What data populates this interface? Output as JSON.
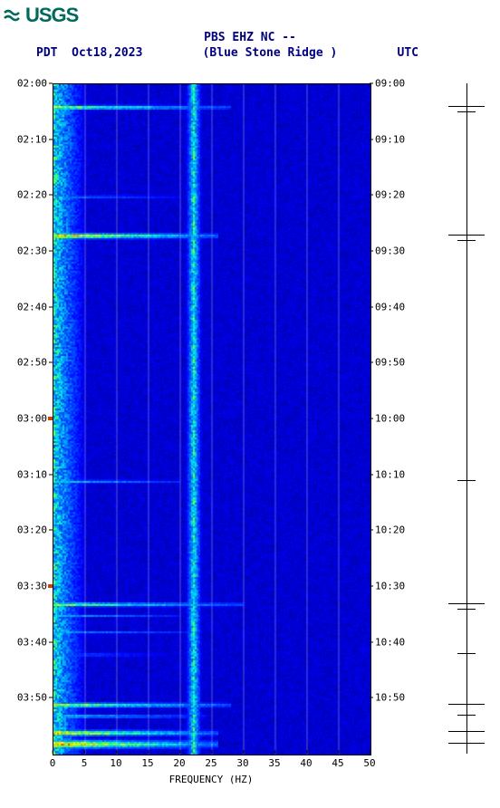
{
  "logo": {
    "text": "USGS",
    "color": "#00695c"
  },
  "header": {
    "title": "PBS EHZ NC --",
    "tz_left": "PDT",
    "date": "Oct18,2023",
    "station": "(Blue Stone Ridge )",
    "tz_right": "UTC"
  },
  "spectrogram": {
    "type": "spectrogram",
    "xlabel": "FREQUENCY (HZ)",
    "xlim": [
      0,
      50
    ],
    "xticks": [
      0,
      5,
      10,
      15,
      20,
      25,
      30,
      35,
      40,
      45,
      50
    ],
    "grid_x": [
      5,
      10,
      15,
      20,
      25,
      30,
      35,
      40,
      45
    ],
    "ylim_left_min": 120,
    "left_ticks": [
      {
        "v": 0,
        "label": "02:00"
      },
      {
        "v": 10,
        "label": "02:10"
      },
      {
        "v": 20,
        "label": "02:20"
      },
      {
        "v": 30,
        "label": "02:30"
      },
      {
        "v": 40,
        "label": "02:40"
      },
      {
        "v": 50,
        "label": "02:50"
      },
      {
        "v": 60,
        "label": "03:00"
      },
      {
        "v": 70,
        "label": "03:10"
      },
      {
        "v": 80,
        "label": "03:20"
      },
      {
        "v": 90,
        "label": "03:30"
      },
      {
        "v": 100,
        "label": "03:40"
      },
      {
        "v": 110,
        "label": "03:50"
      }
    ],
    "right_ticks": [
      {
        "v": 0,
        "label": "09:00"
      },
      {
        "v": 10,
        "label": "09:10"
      },
      {
        "v": 20,
        "label": "09:20"
      },
      {
        "v": 30,
        "label": "09:30"
      },
      {
        "v": 40,
        "label": "09:40"
      },
      {
        "v": 50,
        "label": "09:50"
      },
      {
        "v": 60,
        "label": "10:00"
      },
      {
        "v": 70,
        "label": "10:10"
      },
      {
        "v": 80,
        "label": "10:20"
      },
      {
        "v": 90,
        "label": "10:30"
      },
      {
        "v": 100,
        "label": "10:40"
      },
      {
        "v": 110,
        "label": "10:50"
      }
    ],
    "colorscale": {
      "stops": [
        {
          "v": 0.0,
          "c": "#00008b"
        },
        {
          "v": 0.15,
          "c": "#0000ff"
        },
        {
          "v": 0.35,
          "c": "#0060ff"
        },
        {
          "v": 0.5,
          "c": "#00c0ff"
        },
        {
          "v": 0.6,
          "c": "#00ffc0"
        },
        {
          "v": 0.7,
          "c": "#80ff00"
        },
        {
          "v": 0.8,
          "c": "#ffff00"
        },
        {
          "v": 0.9,
          "c": "#ff8000"
        },
        {
          "v": 1.0,
          "c": "#ff0000"
        }
      ]
    },
    "background_color": "#0000b0",
    "persistent_band": {
      "freq": 22,
      "width": 1.5,
      "intensity": 0.6
    },
    "low_freq_noise": {
      "freq_max": 6,
      "intensity_base": 0.55
    },
    "events": [
      {
        "t": 4,
        "intensity": 0.9,
        "freq_max": 28,
        "thickness": 0.6
      },
      {
        "t": 27,
        "intensity": 1.0,
        "freq_max": 26,
        "thickness": 0.8
      },
      {
        "t": 20,
        "intensity": 0.55,
        "freq_max": 20,
        "thickness": 0.4
      },
      {
        "t": 71,
        "intensity": 0.6,
        "freq_max": 20,
        "thickness": 0.5
      },
      {
        "t": 93,
        "intensity": 0.85,
        "freq_max": 30,
        "thickness": 0.6
      },
      {
        "t": 95,
        "intensity": 0.55,
        "freq_max": 20,
        "thickness": 0.4
      },
      {
        "t": 98,
        "intensity": 0.55,
        "freq_max": 22,
        "thickness": 0.4
      },
      {
        "t": 102,
        "intensity": 0.5,
        "freq_max": 18,
        "thickness": 0.4
      },
      {
        "t": 111,
        "intensity": 0.9,
        "freq_max": 28,
        "thickness": 0.7
      },
      {
        "t": 113,
        "intensity": 0.7,
        "freq_max": 24,
        "thickness": 0.5
      },
      {
        "t": 116,
        "intensity": 1.0,
        "freq_max": 26,
        "thickness": 0.8
      },
      {
        "t": 118,
        "intensity": 1.0,
        "freq_max": 26,
        "thickness": 1.2
      }
    ],
    "marker_ticks": [
      {
        "v": 4,
        "wide": true
      },
      {
        "v": 5,
        "wide": false
      },
      {
        "v": 27,
        "wide": true
      },
      {
        "v": 28,
        "wide": false
      },
      {
        "v": 71,
        "wide": false
      },
      {
        "v": 93,
        "wide": true
      },
      {
        "v": 94,
        "wide": false
      },
      {
        "v": 102,
        "wide": false
      },
      {
        "v": 111,
        "wide": true
      },
      {
        "v": 113,
        "wide": false
      },
      {
        "v": 116,
        "wide": true
      },
      {
        "v": 118,
        "wide": true
      }
    ],
    "left_markers": [
      90,
      60
    ]
  }
}
